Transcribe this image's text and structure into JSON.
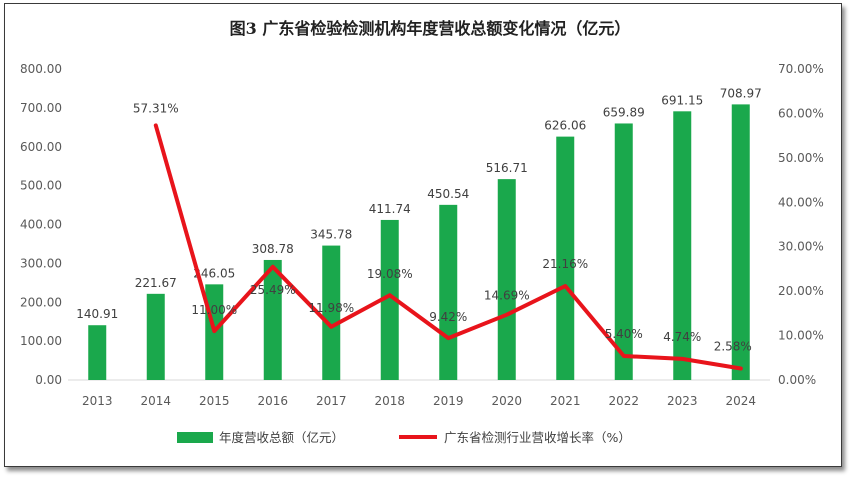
{
  "chart_data": {
    "type": "bar",
    "title": "图3 广东省检验检测机构年度营收总额变化情况（亿元）",
    "categories": [
      "2013",
      "2014",
      "2015",
      "2016",
      "2017",
      "2018",
      "2019",
      "2020",
      "2021",
      "2022",
      "2023",
      "2024"
    ],
    "series": [
      {
        "name": "年度营收总额（亿元）",
        "type": "bar",
        "axis": "left",
        "color": "#1aa84c",
        "values": [
          140.91,
          221.67,
          246.05,
          308.78,
          345.78,
          411.74,
          450.54,
          516.71,
          626.06,
          659.89,
          691.15,
          708.97
        ],
        "labels": [
          "140.91",
          "221.67",
          "246.05",
          "308.78",
          "345.78",
          "411.74",
          "450.54",
          "516.71",
          "626.06",
          "659.89",
          "691.15",
          "708.97"
        ]
      },
      {
        "name": "广东省检测行业营收增长率（%）",
        "type": "line",
        "axis": "right",
        "color": "#e8141b",
        "values": [
          null,
          57.31,
          11.0,
          25.49,
          11.98,
          19.08,
          9.42,
          14.69,
          21.16,
          5.4,
          4.74,
          2.58
        ],
        "labels": [
          "",
          "57.31%",
          "11.00%",
          "25.49%",
          "11.98%",
          "19.08%",
          "9.42%",
          "14.69%",
          "21.16%",
          "5.40%",
          "4.74%",
          "2.58%"
        ]
      }
    ],
    "y_left": {
      "min": 0,
      "max": 800,
      "step": 100,
      "tick_labels": [
        "0.00",
        "100.00",
        "200.00",
        "300.00",
        "400.00",
        "500.00",
        "600.00",
        "700.00",
        "800.00"
      ]
    },
    "y_right": {
      "min": 0,
      "max": 70,
      "step": 10,
      "tick_labels": [
        "0.00%",
        "10.00%",
        "20.00%",
        "30.00%",
        "40.00%",
        "50.00%",
        "60.00%",
        "70.00%"
      ]
    },
    "legend": {
      "position": "bottom"
    }
  }
}
